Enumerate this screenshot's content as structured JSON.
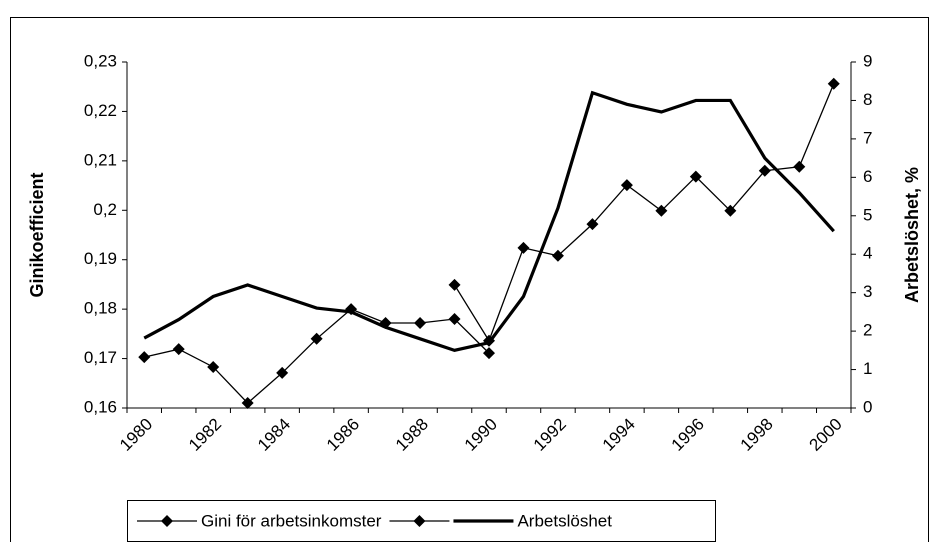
{
  "chart_data": {
    "type": "line",
    "categories": [
      "1980",
      null,
      "1982",
      null,
      "1984",
      null,
      "1986",
      null,
      "1988",
      null,
      "1990",
      null,
      "1992",
      null,
      "1994",
      null,
      "1996",
      null,
      "1998",
      null,
      "2000"
    ],
    "y_label": "Ginikoefficient",
    "y2_label": "Arbetslöshet, %",
    "ylim": [
      0.16,
      0.23
    ],
    "yticks": [
      {
        "value": 0.16,
        "label": "0,16"
      },
      {
        "value": 0.17,
        "label": "0,17"
      },
      {
        "value": 0.18,
        "label": "0,18"
      },
      {
        "value": 0.19,
        "label": "0,19"
      },
      {
        "value": 0.2,
        "label": "0,2"
      },
      {
        "value": 0.21,
        "label": "0,21"
      },
      {
        "value": 0.22,
        "label": "0,22"
      },
      {
        "value": 0.23,
        "label": "0,23"
      }
    ],
    "y2lim": [
      0,
      9
    ],
    "y2ticks": [
      0,
      1,
      2,
      3,
      4,
      5,
      6,
      7,
      8,
      9
    ],
    "series": [
      {
        "name": "Gini för arbetsinkomster",
        "color": "#000000",
        "marker": "diamond",
        "values": [
          0.1703,
          0.1719,
          0.1683,
          0.161,
          0.1671,
          0.174,
          0.18,
          0.1772,
          0.1772,
          0.178,
          0.1711,
          null,
          null,
          null,
          null,
          null,
          null,
          null,
          null,
          null,
          null
        ]
      },
      {
        "color": "#000000",
        "marker": "diamond",
        "values": [
          null,
          null,
          null,
          null,
          null,
          null,
          null,
          null,
          null,
          0.1849,
          0.1736,
          0.1924,
          0.1908,
          0.1972,
          0.2051,
          0.1999,
          0.2068,
          0.1999,
          0.208,
          0.2088,
          0.2256
        ]
      },
      {
        "name": "Arbetslöshet",
        "color": "#000000",
        "axis": "y2",
        "values": [
          1.82,
          2.3,
          2.9,
          3.2,
          2.9,
          2.6,
          2.5,
          2.1,
          1.8,
          1.5,
          1.7,
          2.9,
          5.2,
          8.2,
          7.9,
          7.7,
          8.0,
          8.0,
          6.5,
          5.6,
          4.6
        ]
      }
    ]
  }
}
